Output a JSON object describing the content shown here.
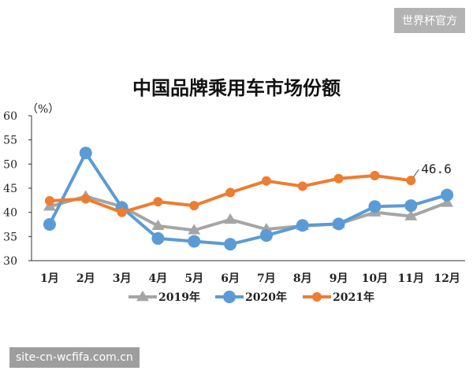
{
  "watermark_tag": "世界杯官方",
  "site_tag": "site-cn-wcfifa.com.cn",
  "chart_data": {
    "type": "line",
    "title": "中国品牌乘用车市场份额",
    "unit_label": "（%）",
    "categories": [
      "1月",
      "2月",
      "3月",
      "4月",
      "5月",
      "6月",
      "7月",
      "8月",
      "9月",
      "10月",
      "11月",
      "12月"
    ],
    "ylim": [
      30,
      60
    ],
    "yticks": [
      30,
      35,
      40,
      45,
      50,
      55,
      60
    ],
    "grid": false,
    "legend_position": "bottom",
    "series": [
      {
        "name": "2019年",
        "color": "#a5a5a5",
        "marker": "triangle",
        "values": [
          41.2,
          43.3,
          41.2,
          37.2,
          36.3,
          38.5,
          36.5,
          37.2,
          37.6,
          40.0,
          39.2,
          42.0
        ]
      },
      {
        "name": "2020年",
        "color": "#5b9bd5",
        "marker": "circle",
        "values": [
          37.5,
          52.3,
          41.0,
          34.6,
          34.0,
          33.4,
          35.2,
          37.3,
          37.6,
          41.2,
          41.4,
          43.6
        ]
      },
      {
        "name": "2021年",
        "color": "#ed7d31",
        "marker": "circle",
        "values": [
          42.4,
          42.8,
          40.0,
          42.2,
          41.4,
          44.1,
          46.5,
          45.4,
          47.0,
          47.6,
          46.6,
          null
        ]
      }
    ],
    "annotations": [
      {
        "series": "2021年",
        "index": 10,
        "text": "46.6"
      }
    ]
  }
}
